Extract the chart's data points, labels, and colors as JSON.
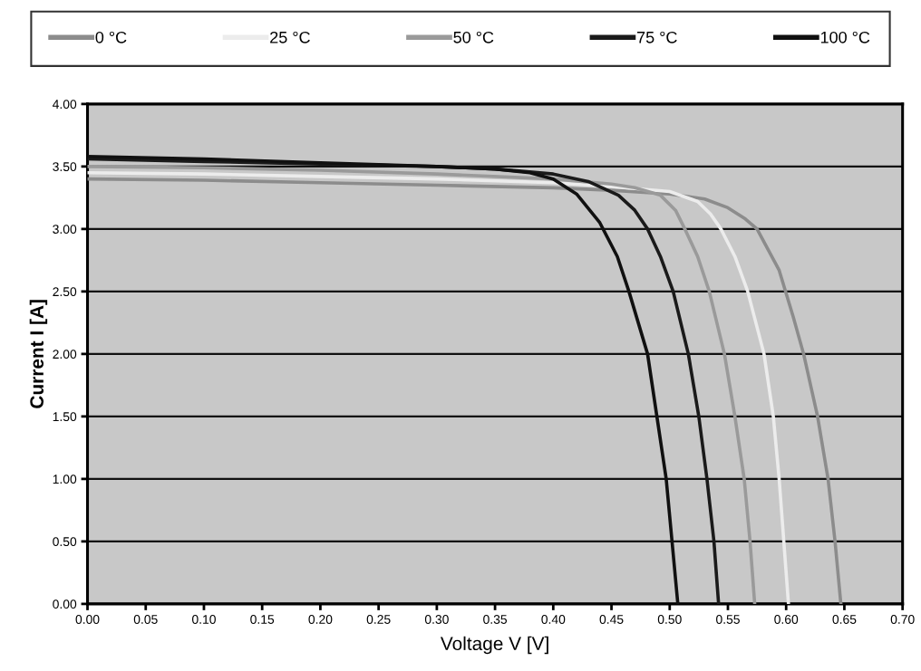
{
  "chart_data": {
    "type": "line",
    "xlabel": "Voltage V [V]",
    "ylabel": "Current I [A]",
    "xlim": [
      0,
      0.7
    ],
    "ylim": [
      0,
      4
    ],
    "xticks": [
      {
        "value": 0,
        "label": "0.00"
      },
      {
        "value": 0.05,
        "label": "0.05"
      },
      {
        "value": 0.1,
        "label": "0.10"
      },
      {
        "value": 0.15,
        "label": "0.15"
      },
      {
        "value": 0.2,
        "label": "0.20"
      },
      {
        "value": 0.25,
        "label": "0.25"
      },
      {
        "value": 0.3,
        "label": "0.30"
      },
      {
        "value": 0.35,
        "label": "0.35"
      },
      {
        "value": 0.4,
        "label": "0.40"
      },
      {
        "value": 0.45,
        "label": "0.45"
      },
      {
        "value": 0.5,
        "label": "0.50"
      },
      {
        "value": 0.55,
        "label": "0.55"
      },
      {
        "value": 0.6,
        "label": "0.60"
      },
      {
        "value": 0.65,
        "label": "0.65"
      },
      {
        "value": 0.7,
        "label": "0.70"
      }
    ],
    "yticks": [
      {
        "value": 0,
        "label": "0.00"
      },
      {
        "value": 0.5,
        "label": "0.50"
      },
      {
        "value": 1,
        "label": "1.00"
      },
      {
        "value": 1.5,
        "label": "1.50"
      },
      {
        "value": 2,
        "label": "2.00"
      },
      {
        "value": 2.5,
        "label": "2.50"
      },
      {
        "value": 3,
        "label": "3.00"
      },
      {
        "value": 3.5,
        "label": "3.50"
      },
      {
        "value": 4,
        "label": "4.00"
      }
    ],
    "grid": "y",
    "legend": "top",
    "marker": "none",
    "line_style": "solid",
    "series": [
      {
        "name": "0 °C",
        "color": "#8c8c8c",
        "x": [
          0,
          0.1,
          0.2,
          0.3,
          0.4,
          0.45,
          0.5,
          0.53,
          0.55,
          0.565,
          0.575,
          0.594,
          0.606,
          0.615,
          0.627,
          0.636,
          0.642,
          0.647
        ],
        "values": [
          3.4,
          3.39,
          3.37,
          3.35,
          3.33,
          3.31,
          3.28,
          3.24,
          3.17,
          3.08,
          3.0,
          2.67,
          2.3,
          2.0,
          1.5,
          1.0,
          0.5,
          0
        ]
      },
      {
        "name": "25 °C",
        "color": "#ececec",
        "x": [
          0,
          0.1,
          0.2,
          0.3,
          0.4,
          0.45,
          0.5,
          0.524,
          0.535,
          0.544,
          0.556,
          0.567,
          0.581,
          0.589,
          0.594,
          0.598,
          0.602
        ],
        "values": [
          3.45,
          3.44,
          3.42,
          3.4,
          3.37,
          3.34,
          3.3,
          3.22,
          3.12,
          3.0,
          2.78,
          2.5,
          2.0,
          1.5,
          1.0,
          0.5,
          0
        ]
      },
      {
        "name": "50 °C",
        "color": "#9a9a9a",
        "x": [
          0,
          0.1,
          0.2,
          0.3,
          0.4,
          0.45,
          0.47,
          0.492,
          0.505,
          0.513,
          0.524,
          0.534,
          0.547,
          0.556,
          0.564,
          0.569,
          0.573
        ],
        "values": [
          3.5,
          3.49,
          3.47,
          3.44,
          3.4,
          3.36,
          3.33,
          3.27,
          3.15,
          3.0,
          2.78,
          2.5,
          2.0,
          1.5,
          1.0,
          0.5,
          0
        ]
      },
      {
        "name": "75 °C",
        "color": "#1a1a1a",
        "x": [
          0,
          0.1,
          0.2,
          0.3,
          0.35,
          0.4,
          0.43,
          0.456,
          0.47,
          0.481,
          0.492,
          0.503,
          0.516,
          0.525,
          0.532,
          0.538,
          0.542
        ],
        "values": [
          3.56,
          3.54,
          3.52,
          3.5,
          3.48,
          3.44,
          3.38,
          3.27,
          3.15,
          3.0,
          2.78,
          2.5,
          2.0,
          1.5,
          1.0,
          0.5,
          0
        ]
      },
      {
        "name": "100 °C",
        "color": "#101010",
        "x": [
          0,
          0.1,
          0.2,
          0.3,
          0.35,
          0.38,
          0.4,
          0.42,
          0.44,
          0.455,
          0.465,
          0.481,
          0.489,
          0.497,
          0.502,
          0.507
        ],
        "values": [
          3.58,
          3.56,
          3.53,
          3.5,
          3.48,
          3.45,
          3.4,
          3.28,
          3.05,
          2.78,
          2.5,
          2.0,
          1.5,
          1.0,
          0.5,
          0
        ]
      }
    ]
  }
}
